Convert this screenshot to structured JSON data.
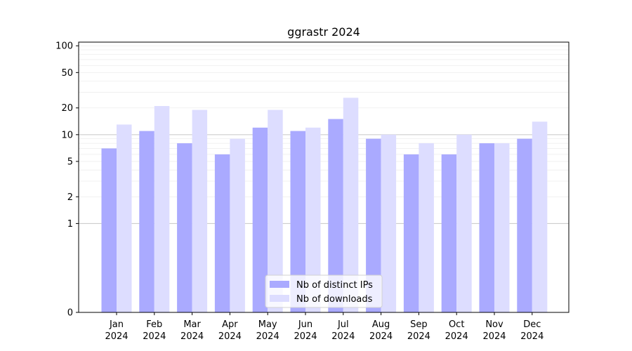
{
  "chart_data": {
    "type": "bar",
    "title": "ggrastr 2024",
    "xlabel": "",
    "ylabel": "",
    "yscale": "symlog",
    "ylim": [
      0,
      110
    ],
    "yticks": [
      0,
      1,
      2,
      5,
      10,
      20,
      50,
      100
    ],
    "grid": true,
    "legend_position": "bottom-center",
    "categories": [
      {
        "month": "Jan",
        "year": "2024"
      },
      {
        "month": "Feb",
        "year": "2024"
      },
      {
        "month": "Mar",
        "year": "2024"
      },
      {
        "month": "Apr",
        "year": "2024"
      },
      {
        "month": "May",
        "year": "2024"
      },
      {
        "month": "Jun",
        "year": "2024"
      },
      {
        "month": "Jul",
        "year": "2024"
      },
      {
        "month": "Aug",
        "year": "2024"
      },
      {
        "month": "Sep",
        "year": "2024"
      },
      {
        "month": "Oct",
        "year": "2024"
      },
      {
        "month": "Nov",
        "year": "2024"
      },
      {
        "month": "Dec",
        "year": "2024"
      }
    ],
    "series": [
      {
        "name": "Nb of distinct IPs",
        "color": "#aaaaff",
        "values": [
          7,
          11,
          8,
          6,
          12,
          11,
          15,
          9,
          6,
          6,
          8,
          9
        ]
      },
      {
        "name": "Nb of downloads",
        "color": "#ddddff",
        "values": [
          13,
          21,
          19,
          9,
          19,
          12,
          26,
          10,
          8,
          10,
          8,
          14
        ]
      }
    ]
  }
}
